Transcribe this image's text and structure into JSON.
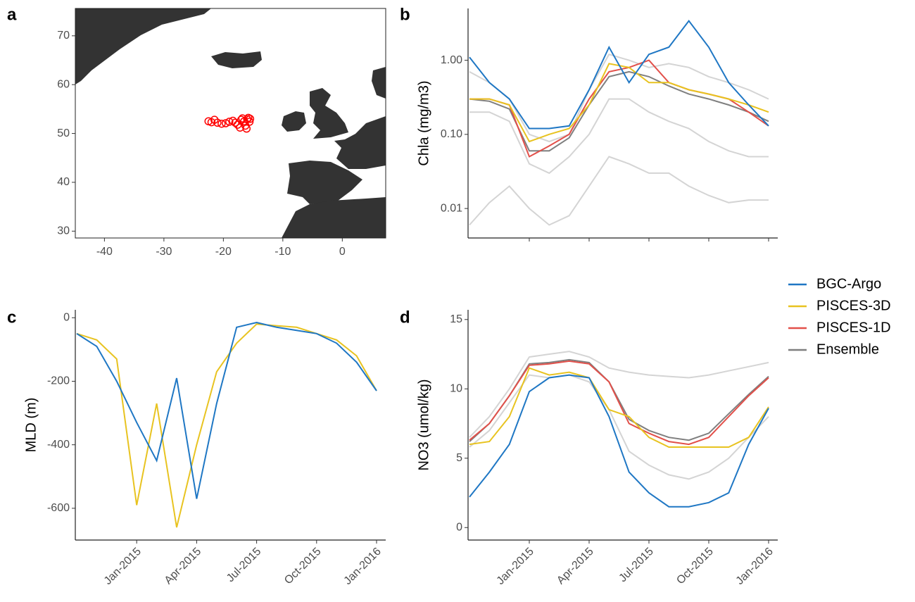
{
  "chart_data": [
    {
      "type": "scatter",
      "label": "a",
      "frame": true,
      "color": "#ff0000",
      "x": [
        -22.5,
        -22,
        -21.5,
        -21,
        -20.3,
        -19.6,
        -19,
        -18.4,
        -18,
        -17.6,
        -17.2,
        -17,
        -16.8,
        -16.5,
        -16.3,
        -16,
        -15.8,
        -15.6,
        -15.5,
        -16.1
      ],
      "values": [
        52.5,
        52.3,
        52.8,
        52.2,
        52.0,
        52.1,
        52.4,
        52.6,
        52.2,
        51.8,
        51.2,
        52.8,
        53.1,
        52.5,
        51.6,
        52.9,
        53.2,
        52.4,
        53.0,
        51.0
      ],
      "xlim": [
        -44.9,
        7.3
      ],
      "xticks": [
        -40,
        -30,
        -20,
        -10,
        0
      ],
      "ylim": [
        28.6,
        75.6
      ],
      "yticks": [
        30,
        40,
        50,
        60,
        70
      ]
    },
    {
      "type": "line",
      "label": "b",
      "y_label": "Chla (mg/m3)",
      "log_y": true,
      "show_x_tick_labels": false,
      "x": [
        "2014-10",
        "2014-11",
        "2014-12",
        "2015-01",
        "2015-02",
        "2015-03",
        "2015-04",
        "2015-05",
        "2015-06",
        "2015-07",
        "2015-08",
        "2015-09",
        "2015-10",
        "2015-11",
        "2015-12",
        "2016-01"
      ],
      "xlim": [
        "2014-10",
        "2016-01"
      ],
      "xticks": [
        "2015-01",
        "2015-04",
        "2015-07",
        "2015-10",
        "2016-01"
      ],
      "ylim": [
        0.004,
        5
      ],
      "yticks": [
        0.01,
        {
          "value": 0.1,
          "label": "0.10"
        },
        {
          "value": 1,
          "label": "1.00"
        }
      ],
      "series": [
        {
          "name": "BGC-Argo",
          "color": "#1f77c4",
          "values": [
            1.1,
            0.5,
            0.3,
            0.12,
            0.12,
            0.13,
            0.4,
            1.5,
            0.5,
            1.2,
            1.5,
            3.4,
            1.5,
            0.5,
            0.25,
            0.13
          ]
        },
        {
          "name": "PISCES-3D",
          "color": "#e8c320",
          "values": [
            0.3,
            0.3,
            0.25,
            0.08,
            0.1,
            0.12,
            0.25,
            0.9,
            0.8,
            0.5,
            0.5,
            0.4,
            0.35,
            0.3,
            0.25,
            0.2
          ]
        },
        {
          "name": "PISCES-1D",
          "color": "#e2504a",
          "values": [
            0.3,
            0.3,
            0.25,
            0.05,
            0.07,
            0.1,
            0.3,
            0.7,
            0.8,
            1.0,
            0.5,
            0.4,
            0.35,
            0.3,
            0.2,
            0.13
          ]
        },
        {
          "name": "Ensemble",
          "color": "#7f7f7f",
          "member_color": "#d4d4d4",
          "values": [
            0.3,
            0.28,
            0.22,
            0.06,
            0.06,
            0.09,
            0.25,
            0.6,
            0.7,
            0.6,
            0.45,
            0.35,
            0.3,
            0.25,
            0.2,
            0.15
          ],
          "members": [
            [
              0.006,
              0.012,
              0.02,
              0.01,
              0.006,
              0.008,
              0.02,
              0.05,
              0.04,
              0.03,
              0.03,
              0.02,
              0.015,
              0.012,
              0.013,
              0.013
            ],
            [
              0.2,
              0.2,
              0.15,
              0.04,
              0.03,
              0.05,
              0.1,
              0.3,
              0.3,
              0.2,
              0.15,
              0.12,
              0.08,
              0.06,
              0.05,
              0.05
            ],
            [
              0.7,
              0.5,
              0.3,
              0.1,
              0.08,
              0.1,
              0.4,
              1.2,
              1.0,
              0.8,
              0.9,
              0.8,
              0.6,
              0.5,
              0.4,
              0.3
            ]
          ]
        }
      ]
    },
    {
      "type": "line",
      "label": "c",
      "y_label": "MLD (m)",
      "x": [
        "2014-10",
        "2014-11",
        "2014-12",
        "2015-01",
        "2015-02",
        "2015-03",
        "2015-04",
        "2015-05",
        "2015-06",
        "2015-07",
        "2015-08",
        "2015-09",
        "2015-10",
        "2015-11",
        "2015-12",
        "2016-01"
      ],
      "xlim": [
        "2014-10",
        "2016-01"
      ],
      "xticks": [
        {
          "value": "2015-01",
          "label": "Jan-2015"
        },
        {
          "value": "2015-04",
          "label": "Apr-2015"
        },
        {
          "value": "2015-07",
          "label": "Jul-2015"
        },
        {
          "value": "2015-10",
          "label": "Oct-2015"
        },
        {
          "value": "2016-01",
          "label": "Jan-2016"
        }
      ],
      "ylim": [
        -700,
        25
      ],
      "yticks": [
        0,
        -200,
        -400,
        -600
      ],
      "series": [
        {
          "name": "BGC-Argo",
          "color": "#1f77c4",
          "values": [
            -50,
            -90,
            -200,
            -330,
            -450,
            -190,
            -570,
            -270,
            -30,
            -15,
            -30,
            -40,
            -50,
            -80,
            -140,
            -230
          ]
        },
        {
          "name": "PISCES-3D",
          "color": "#e8c320",
          "values": [
            -50,
            -70,
            -130,
            -590,
            -270,
            -660,
            -400,
            -170,
            -80,
            -20,
            -25,
            -30,
            -50,
            -70,
            -120,
            -230
          ]
        }
      ]
    },
    {
      "type": "line",
      "label": "d",
      "y_label": "NO3 (umol/kg)",
      "legend": "right",
      "x": [
        "2014-10",
        "2014-11",
        "2014-12",
        "2015-01",
        "2015-02",
        "2015-03",
        "2015-04",
        "2015-05",
        "2015-06",
        "2015-07",
        "2015-08",
        "2015-09",
        "2015-10",
        "2015-11",
        "2015-12",
        "2016-01"
      ],
      "xlim": [
        "2014-10",
        "2016-01"
      ],
      "xticks": [
        {
          "value": "2015-01",
          "label": "Jan-2015"
        },
        {
          "value": "2015-04",
          "label": "Apr-2015"
        },
        {
          "value": "2015-07",
          "label": "Jul-2015"
        },
        {
          "value": "2015-10",
          "label": "Oct-2015"
        },
        {
          "value": "2016-01",
          "label": "Jan-2016"
        }
      ],
      "ylim": [
        -0.9,
        15.7
      ],
      "yticks": [
        0,
        5,
        10,
        15
      ],
      "series": [
        {
          "name": "BGC-Argo",
          "color": "#1f77c4",
          "values": [
            2.2,
            4,
            6,
            9.8,
            10.8,
            11,
            10.8,
            8,
            4,
            2.5,
            1.5,
            1.5,
            1.8,
            2.5,
            6,
            8.6
          ]
        },
        {
          "name": "PISCES-3D",
          "color": "#e8c320",
          "values": [
            6,
            6.2,
            8,
            11.5,
            11,
            11.2,
            10.8,
            8.5,
            8,
            6.5,
            5.8,
            5.8,
            5.8,
            5.8,
            6.5,
            8.7
          ]
        },
        {
          "name": "PISCES-1D",
          "color": "#e2504a",
          "values": [
            6.3,
            7.5,
            9.5,
            11.7,
            11.8,
            12,
            11.8,
            10.5,
            7.5,
            6.8,
            6.2,
            6,
            6.5,
            8,
            9.5,
            10.8
          ]
        },
        {
          "name": "Ensemble",
          "color": "#7f7f7f",
          "member_color": "#d4d4d4",
          "values": [
            6.2,
            7.5,
            9.5,
            11.8,
            11.9,
            12.1,
            11.9,
            10.5,
            7.8,
            7,
            6.5,
            6.3,
            6.8,
            8.2,
            9.6,
            10.9
          ],
          "members": [
            [
              6.5,
              8,
              10,
              12.3,
              12.5,
              12.7,
              12.3,
              11.5,
              11.2,
              11,
              10.9,
              10.8,
              11,
              11.3,
              11.6,
              11.9
            ],
            [
              5.8,
              7,
              9,
              11,
              10.8,
              11,
              10.5,
              8.5,
              5.5,
              4.5,
              3.8,
              3.5,
              4,
              5,
              6.5,
              8
            ]
          ]
        }
      ]
    }
  ]
}
